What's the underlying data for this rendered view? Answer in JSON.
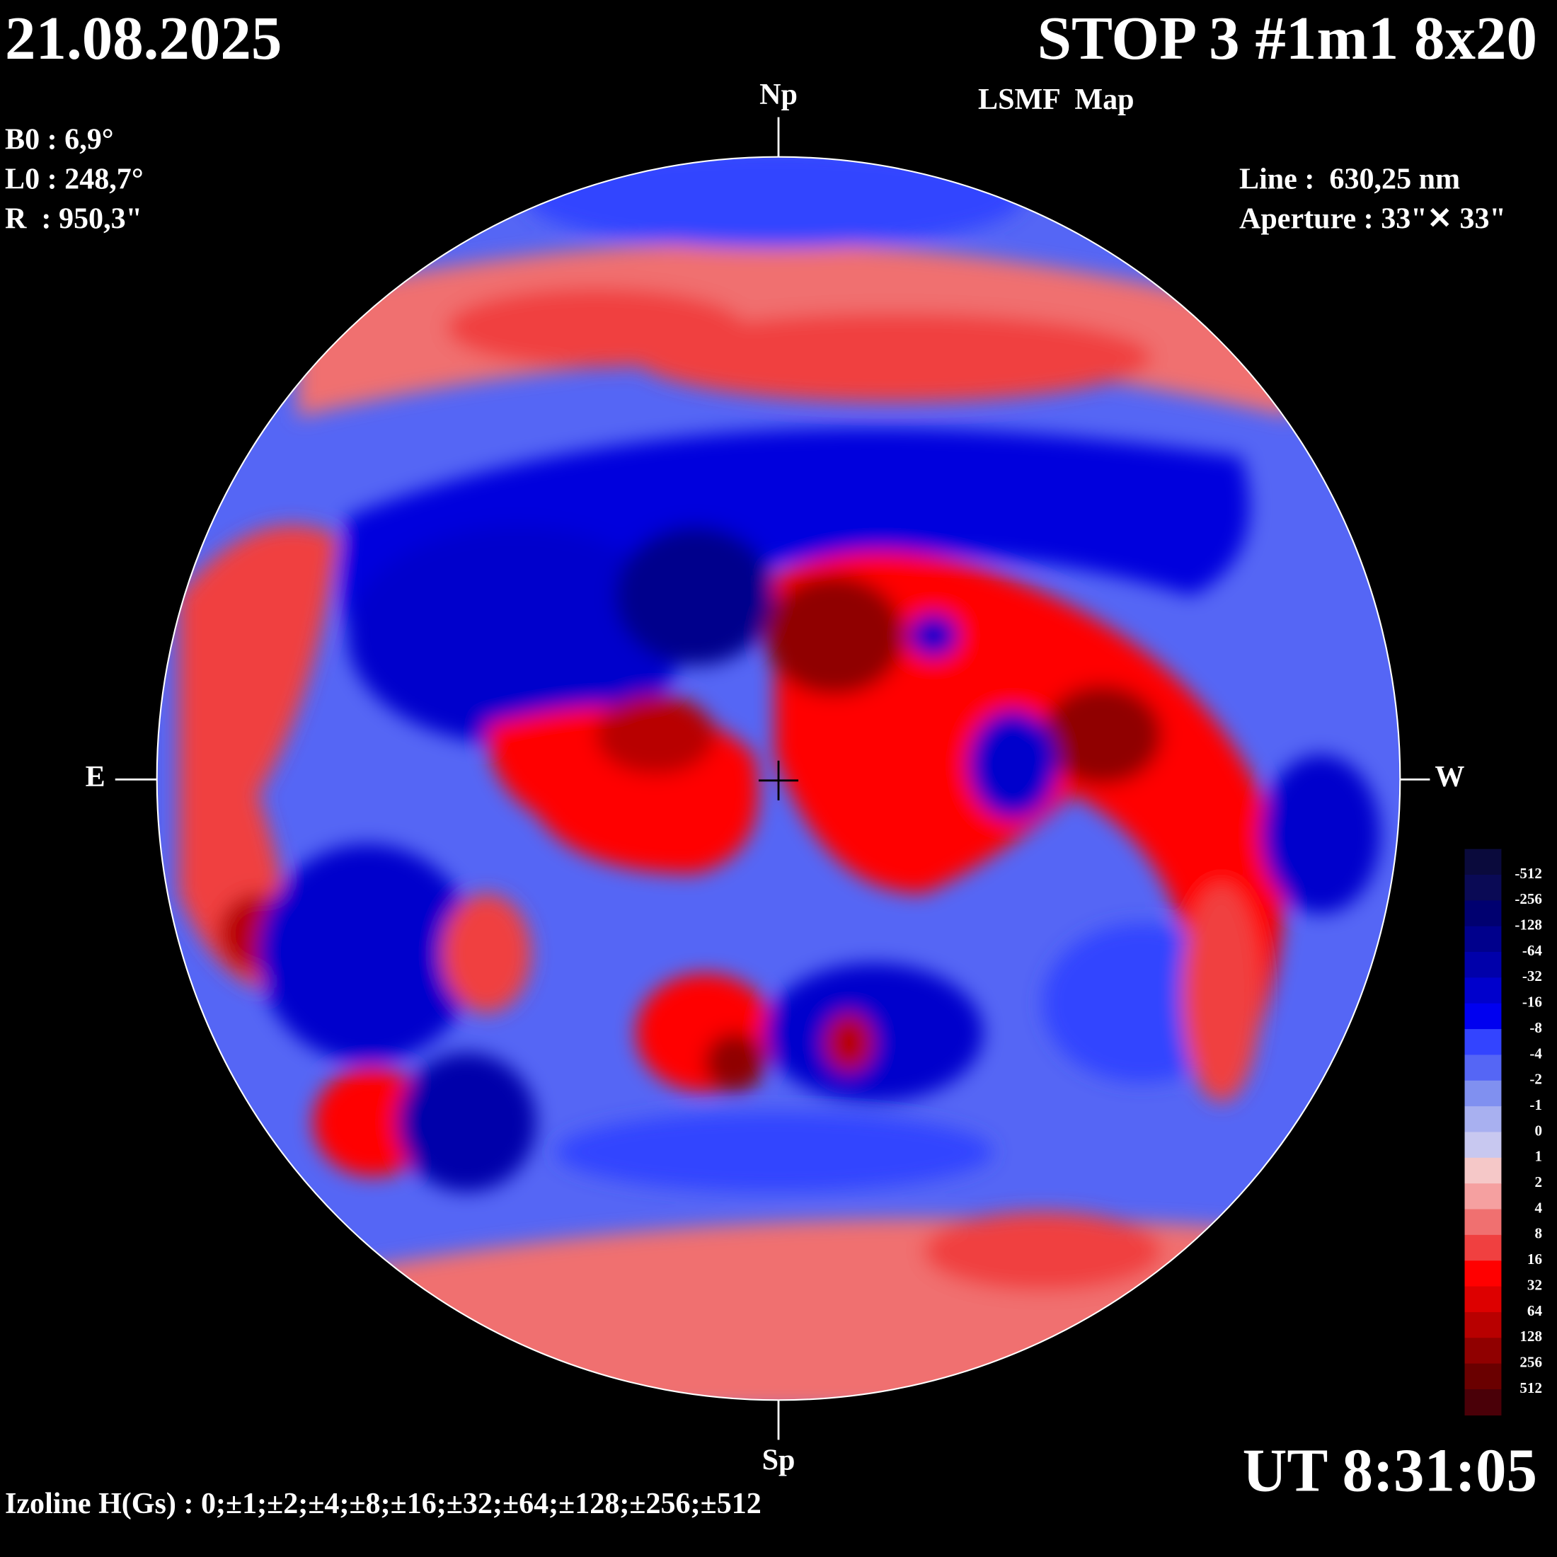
{
  "header": {
    "date": "21.08.2025",
    "title": "STOP 3 #1m1 8x20",
    "subtitle": "LSMF  Map",
    "time": "UT 8:31:05"
  },
  "params": [
    "B0 : 6,9°",
    "L0 : 248,7°",
    "R  : 950,3\""
  ],
  "instrument": [
    "Line :  630,25 nm",
    "Aperture : 33\"✕ 33\""
  ],
  "directions": {
    "north": "Np",
    "south": "Sp",
    "east": "E",
    "west": "W"
  },
  "colorbar": {
    "levels": [
      -512,
      -256,
      -128,
      -64,
      -32,
      -16,
      -8,
      -4,
      -2,
      -1,
      0,
      1,
      2,
      4,
      8,
      16,
      32,
      64,
      128,
      256,
      512
    ],
    "colors": [
      "#0a0a3c",
      "#0a0a55",
      "#000070",
      "#00008c",
      "#0000aa",
      "#0000cc",
      "#0000f0",
      "#3344ff",
      "#5566f5",
      "#8090f0",
      "#a8b0f0",
      "#c8c8f0",
      "#f5c8c8",
      "#f5a0a0",
      "#f07070",
      "#f04040",
      "#ff0000",
      "#dd0000",
      "#b80000",
      "#900000",
      "#6a0000",
      "#4a0008"
    ]
  },
  "footer": "Izoline H(Gs) : 0;±1;±2;±4;±8;±16;±32;±64;±128;±256;±512"
}
